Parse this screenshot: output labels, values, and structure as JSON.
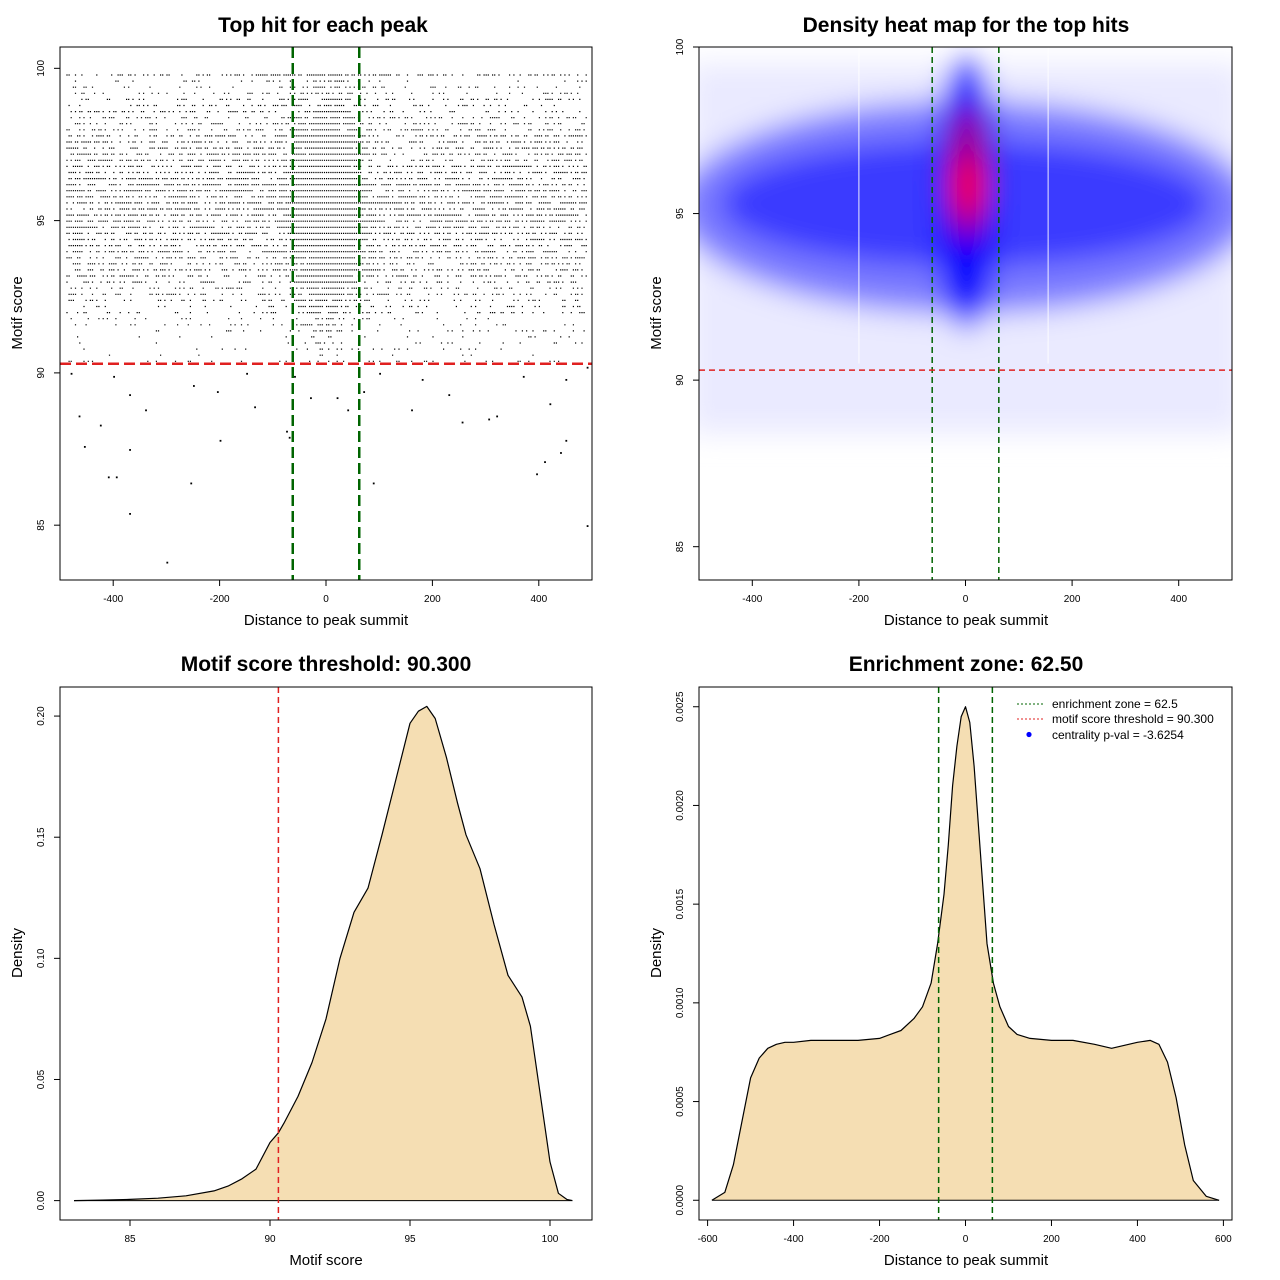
{
  "chart_data": [
    {
      "type": "scatter",
      "title": "Top hit for each peak",
      "xlabel": "Distance to peak summit",
      "ylabel": "Motif score",
      "xlim": [
        -500,
        500
      ],
      "ylim": [
        83.2,
        100.7
      ],
      "xticks": [
        -400,
        -200,
        0,
        200,
        400
      ],
      "yticks": [
        85,
        90,
        95,
        100
      ],
      "xtick_labels": [
        "-400",
        "-200",
        "0",
        "200",
        "400"
      ],
      "ytick_labels": [
        "85",
        "90",
        "95",
        "100"
      ],
      "hlines": [
        {
          "y": 90.3,
          "color": "#e02020",
          "style": "dashed"
        }
      ],
      "vlines": [
        {
          "x": -62.5,
          "color": "#006400",
          "style": "dashed"
        },
        {
          "x": 62.5,
          "color": "#006400",
          "style": "dashed"
        }
      ],
      "points_description": "dense cloud of black points over x in [-490, 490], y mostly 90.3-99.8, concentrated near x=0, y~95.5; sparse points below 90.3",
      "sparse_points": [
        {
          "x": -300,
          "y": 83.8
        },
        {
          "x": -370,
          "y": 85.4
        },
        {
          "x": 490,
          "y": 85.0
        },
        {
          "x": -410,
          "y": 86.6
        },
        {
          "x": -395,
          "y": 86.6
        },
        {
          "x": -255,
          "y": 86.4
        },
        {
          "x": 88,
          "y": 86.4
        },
        {
          "x": 395,
          "y": 86.7
        },
        {
          "x": -370,
          "y": 87.5
        },
        {
          "x": -455,
          "y": 87.6
        },
        {
          "x": 410,
          "y": 87.1
        },
        {
          "x": 440,
          "y": 87.4
        },
        {
          "x": 450,
          "y": 87.8
        },
        {
          "x": -200,
          "y": 87.8
        },
        {
          "x": -70,
          "y": 87.9
        },
        {
          "x": -75,
          "y": 88.1
        },
        {
          "x": 320,
          "y": 88.6
        },
        {
          "x": -135,
          "y": 88.9
        },
        {
          "x": -465,
          "y": 88.6
        },
        {
          "x": -425,
          "y": 88.3
        },
        {
          "x": -340,
          "y": 88.8
        },
        {
          "x": -30,
          "y": 89.2
        },
        {
          "x": 40,
          "y": 88.8
        },
        {
          "x": 160,
          "y": 88.8
        },
        {
          "x": 305,
          "y": 88.5
        },
        {
          "x": 255,
          "y": 88.4
        },
        {
          "x": 420,
          "y": 89.0
        },
        {
          "x": -370,
          "y": 89.3
        },
        {
          "x": -205,
          "y": 89.4
        },
        {
          "x": -250,
          "y": 89.6
        },
        {
          "x": 70,
          "y": 89.4
        },
        {
          "x": 20,
          "y": 89.2
        },
        {
          "x": 230,
          "y": 89.3
        },
        {
          "x": -480,
          "y": 90.0
        },
        {
          "x": -400,
          "y": 89.9
        },
        {
          "x": -150,
          "y": 90.0
        },
        {
          "x": -60,
          "y": 89.9
        },
        {
          "x": 100,
          "y": 90.0
        },
        {
          "x": 180,
          "y": 89.8
        },
        {
          "x": 370,
          "y": 89.9
        },
        {
          "x": 450,
          "y": 89.8
        },
        {
          "x": 490,
          "y": 90.2
        }
      ]
    },
    {
      "type": "heatmap",
      "title": "Density heat map for the top hits",
      "xlabel": "Distance to peak summit",
      "ylabel": "Motif score",
      "xlim": [
        -500,
        500
      ],
      "ylim": [
        84,
        100
      ],
      "xticks": [
        -400,
        -200,
        0,
        200,
        400
      ],
      "yticks": [
        85,
        90,
        95,
        100
      ],
      "xtick_labels": [
        "-400",
        "-200",
        "0",
        "200",
        "400"
      ],
      "ytick_labels": [
        "85",
        "90",
        "95",
        "100"
      ],
      "color_scale": [
        "#ffffff",
        "#0000ff",
        "#ff0000"
      ],
      "peak": {
        "x": 5,
        "y": 95.8
      },
      "hlines": [
        {
          "y": 90.3,
          "color": "#e02020",
          "style": "dashed"
        }
      ],
      "vlines": [
        {
          "x": -62.5,
          "color": "#006400",
          "style": "dashed"
        },
        {
          "x": 62.5,
          "color": "#006400",
          "style": "dashed"
        }
      ]
    },
    {
      "type": "area",
      "title": "Motif score threshold: 90.300",
      "xlabel": "Motif score",
      "ylabel": "Density",
      "xlim": [
        82.5,
        101.5
      ],
      "ylim": [
        -0.008,
        0.212
      ],
      "xticks": [
        85,
        90,
        95,
        100
      ],
      "yticks": [
        0.0,
        0.05,
        0.1,
        0.15,
        0.2
      ],
      "xtick_labels": [
        "85",
        "90",
        "95",
        "100"
      ],
      "ytick_labels": [
        "0.00",
        "0.05",
        "0.10",
        "0.15",
        "0.20"
      ],
      "fill": "#f5deb3",
      "x": [
        83,
        84,
        85,
        86,
        87,
        88,
        88.5,
        89,
        89.5,
        90,
        90.3,
        90.5,
        91,
        91.5,
        92,
        92.5,
        93,
        93.5,
        94,
        94.5,
        95,
        95.3,
        95.6,
        95.9,
        96.3,
        96.7,
        97,
        97.5,
        98,
        98.5,
        99,
        99.3,
        99.6,
        100,
        100.3,
        100.6,
        100.8
      ],
      "y": [
        0.0,
        0.0002,
        0.0005,
        0.001,
        0.002,
        0.004,
        0.006,
        0.009,
        0.013,
        0.024,
        0.028,
        0.032,
        0.043,
        0.057,
        0.075,
        0.1,
        0.119,
        0.129,
        0.151,
        0.174,
        0.197,
        0.202,
        0.204,
        0.199,
        0.183,
        0.164,
        0.151,
        0.137,
        0.114,
        0.093,
        0.084,
        0.072,
        0.048,
        0.016,
        0.003,
        0.0005,
        0.0
      ],
      "vlines": [
        {
          "x": 90.3,
          "color": "#e02020",
          "style": "dashed"
        }
      ]
    },
    {
      "type": "area",
      "title": "Enrichment zone: 62.50",
      "xlabel": "Distance to peak summit",
      "ylabel": "Density",
      "xlim": [
        -620,
        620
      ],
      "ylim": [
        -0.0001,
        0.0026
      ],
      "xticks": [
        -600,
        -400,
        -200,
        0,
        200,
        400,
        600
      ],
      "yticks": [
        0.0,
        0.0005,
        0.001,
        0.0015,
        0.002,
        0.0025
      ],
      "xtick_labels": [
        "-600",
        "-400",
        "-200",
        "0",
        "200",
        "400",
        "600"
      ],
      "ytick_labels": [
        "0.0000",
        "0.0005",
        "0.0010",
        "0.0015",
        "0.0020",
        "0.0025"
      ],
      "fill": "#f5deb3",
      "x": [
        -590,
        -560,
        -540,
        -520,
        -500,
        -480,
        -460,
        -440,
        -420,
        -400,
        -360,
        -300,
        -250,
        -200,
        -150,
        -120,
        -100,
        -80,
        -65,
        -50,
        -40,
        -30,
        -20,
        -10,
        0,
        10,
        20,
        30,
        40,
        50,
        65,
        80,
        100,
        120,
        150,
        200,
        250,
        300,
        340,
        360,
        400,
        430,
        450,
        470,
        490,
        510,
        530,
        560,
        590
      ],
      "y": [
        0.0,
        4e-05,
        0.00018,
        0.0004,
        0.00062,
        0.00072,
        0.00077,
        0.00079,
        0.0008,
        0.0008,
        0.00081,
        0.00081,
        0.00081,
        0.00082,
        0.00086,
        0.00092,
        0.00098,
        0.0011,
        0.0013,
        0.00155,
        0.0018,
        0.0021,
        0.0023,
        0.00245,
        0.0025,
        0.00242,
        0.0022,
        0.0019,
        0.0016,
        0.0013,
        0.0011,
        0.00098,
        0.00088,
        0.00084,
        0.00082,
        0.00081,
        0.00081,
        0.00079,
        0.00077,
        0.00078,
        0.0008,
        0.00081,
        0.00079,
        0.0007,
        0.00052,
        0.00028,
        0.0001,
        2e-05,
        0.0
      ],
      "vlines": [
        {
          "x": -62.5,
          "color": "#006400",
          "style": "dashed"
        },
        {
          "x": 62.5,
          "color": "#006400",
          "style": "dashed"
        }
      ],
      "legend": {
        "position": "top-right",
        "entries": [
          {
            "label": "enrichment zone = 62.5",
            "color": "#006400",
            "symbol": "dotted-line"
          },
          {
            "label": "motif score threshold = 90.300",
            "color": "#e02020",
            "symbol": "dotted-line"
          },
          {
            "label": "centrality p-val = -3.6254",
            "color": "#0000ff",
            "symbol": "point"
          }
        ]
      }
    }
  ]
}
